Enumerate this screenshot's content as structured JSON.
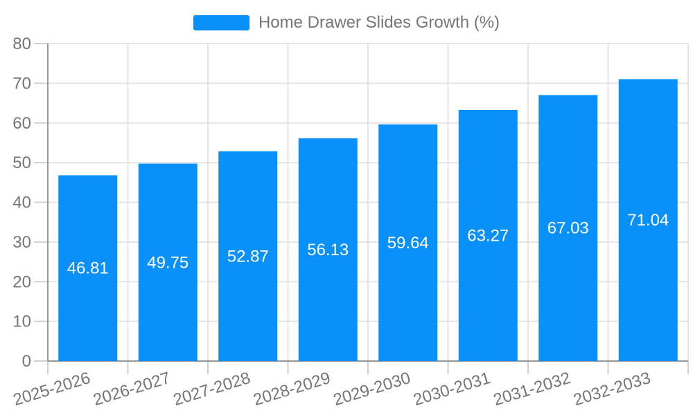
{
  "chart_data": {
    "type": "bar",
    "title": "Home Drawer Slides Growth (%)",
    "categories": [
      "2025-2026",
      "2026-2027",
      "2027-2028",
      "2028-2029",
      "2029-2030",
      "2030-2031",
      "2031-2032",
      "2032-2033"
    ],
    "values": [
      46.81,
      49.75,
      52.87,
      56.13,
      59.64,
      63.27,
      67.03,
      71.04
    ],
    "value_labels": [
      "46.81",
      "49.75",
      "52.87",
      "56.13",
      "59.64",
      "63.27",
      "67.03",
      "71.04"
    ],
    "xlabel": "",
    "ylabel": "",
    "ylim": [
      0,
      80
    ],
    "yticks": [
      0,
      10,
      20,
      30,
      40,
      50,
      60,
      70,
      80
    ],
    "grid": true,
    "legend_position": "top-center",
    "colors": {
      "bar": "#0990f9",
      "bar_label": "#ffffff",
      "axis_text": "#757575",
      "grid_line": "#e4e4e4",
      "tick_line": "#d0d0d0",
      "axis_line": "#979797",
      "background": "#ffffff"
    }
  }
}
